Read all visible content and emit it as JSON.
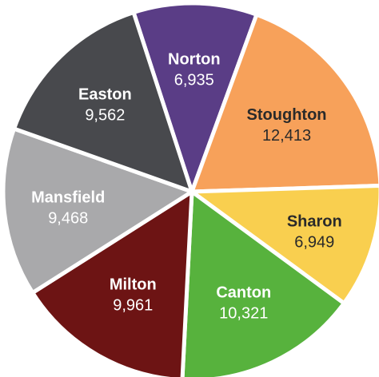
{
  "chart_data": {
    "type": "pie",
    "series": [
      {
        "name": "Norton",
        "value": 6935,
        "label": "Norton",
        "value_label": "6,935",
        "color": "#5a3d86",
        "label_color": "#ffffff"
      },
      {
        "name": "Stoughton",
        "value": 12413,
        "label": "Stoughton",
        "value_label": "12,413",
        "color": "#f7a15a",
        "label_color": "#2a2a2a"
      },
      {
        "name": "Sharon",
        "value": 6949,
        "label": "Sharon",
        "value_label": "6,949",
        "color": "#f9cf4f",
        "label_color": "#2a2a2a"
      },
      {
        "name": "Canton",
        "value": 10321,
        "label": "Canton",
        "value_label": "10,321",
        "color": "#57b23d",
        "label_color": "#ffffff"
      },
      {
        "name": "Milton",
        "value": 9961,
        "label": "Milton",
        "value_label": "9,961",
        "color": "#6d1414",
        "label_color": "#ffffff"
      },
      {
        "name": "Mansfield",
        "value": 9468,
        "label": "Mansfield",
        "value_label": "9,468",
        "color": "#a9a9ab",
        "label_color": "#ffffff"
      },
      {
        "name": "Easton",
        "value": 9562,
        "label": "Easton",
        "value_label": "9,562",
        "color": "#48494d",
        "label_color": "#ffffff"
      }
    ],
    "title": "",
    "legend": "none",
    "data_labels": "inside"
  }
}
